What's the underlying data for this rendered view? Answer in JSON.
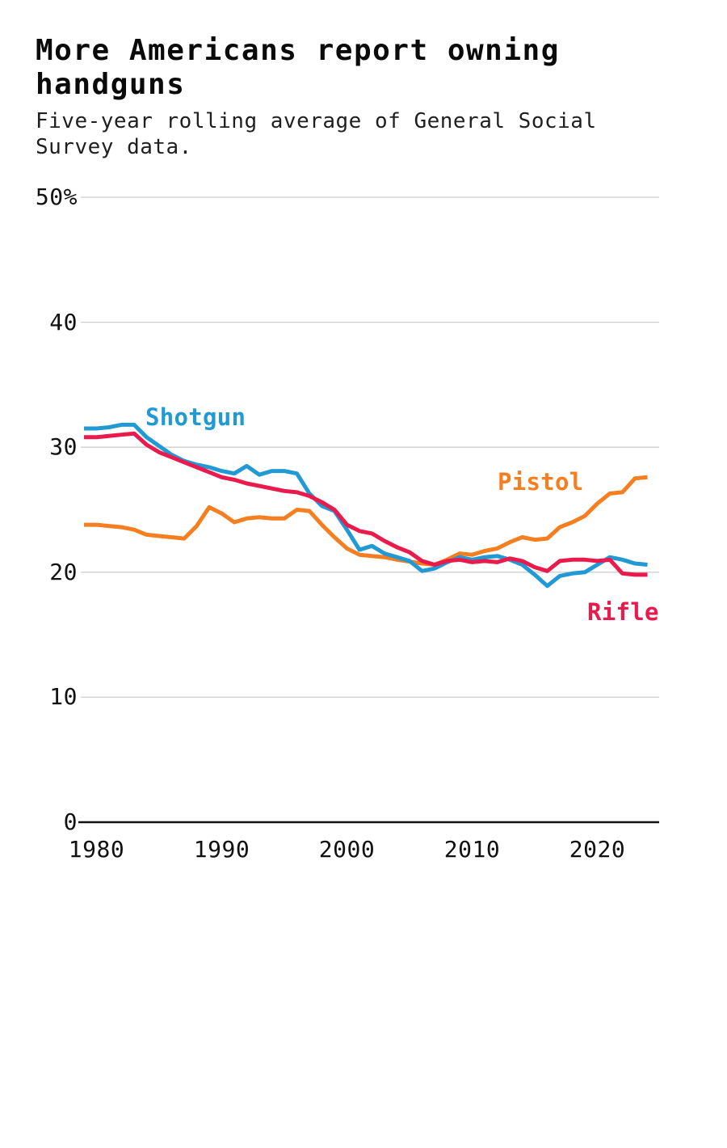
{
  "header": {
    "title": "More Americans report owning handguns",
    "subtitle": "Five-year rolling average of General Social Survey data."
  },
  "colors": {
    "background": "#ffffff",
    "grid": "#cfcfcf",
    "axis": "#111111",
    "text": "#0a0a0a",
    "pistol": "#f57f20",
    "shotgun": "#2199d4",
    "rifle": "#ea1a4c"
  },
  "chart_data": {
    "type": "line",
    "title": "More Americans report owning handguns",
    "subtitle": "Five-year rolling average of General Social Survey data.",
    "xlabel": "",
    "ylabel": "",
    "xlim": [
      1978.6,
      2025
    ],
    "ylim": [
      0,
      50
    ],
    "grid": "horizontal",
    "legend_position": "inline-labels",
    "x": [
      1979,
      1980,
      1981,
      1982,
      1983,
      1984,
      1985,
      1986,
      1987,
      1988,
      1989,
      1990,
      1991,
      1992,
      1993,
      1994,
      1995,
      1996,
      1997,
      1998,
      1999,
      2000,
      2001,
      2002,
      2003,
      2004,
      2005,
      2006,
      2007,
      2008,
      2009,
      2010,
      2011,
      2012,
      2013,
      2014,
      2015,
      2016,
      2017,
      2018,
      2019,
      2020,
      2021,
      2022,
      2023,
      2024
    ],
    "series": [
      {
        "name": "Pistol",
        "color": "#f57f20",
        "values": [
          23.8,
          23.8,
          23.7,
          23.6,
          23.4,
          23.0,
          22.9,
          22.8,
          22.7,
          23.7,
          25.2,
          24.7,
          24.0,
          24.3,
          24.4,
          24.3,
          24.3,
          25.0,
          24.9,
          23.8,
          22.8,
          21.9,
          21.4,
          21.3,
          21.2,
          21.0,
          20.85,
          20.7,
          20.6,
          21.0,
          21.5,
          21.4,
          21.7,
          21.9,
          22.4,
          22.8,
          22.6,
          22.7,
          23.6,
          24.0,
          24.5,
          25.5,
          26.3,
          26.4,
          27.5,
          27.6
        ]
      },
      {
        "name": "Shotgun",
        "color": "#2199d4",
        "values": [
          31.5,
          31.5,
          31.6,
          31.8,
          31.8,
          30.8,
          30.1,
          29.4,
          28.9,
          28.6,
          28.4,
          28.1,
          27.9,
          28.5,
          27.8,
          28.1,
          28.1,
          27.9,
          26.3,
          25.3,
          24.9,
          23.4,
          21.8,
          22.1,
          21.5,
          21.2,
          20.9,
          20.1,
          20.3,
          20.8,
          21.2,
          21.0,
          21.2,
          21.3,
          21.0,
          20.6,
          19.8,
          18.9,
          19.7,
          19.9,
          20.0,
          20.6,
          21.2,
          21.0,
          20.7,
          20.6
        ]
      },
      {
        "name": "Rifle",
        "color": "#ea1a4c",
        "values": [
          30.8,
          30.8,
          30.9,
          31.0,
          31.1,
          30.2,
          29.6,
          29.2,
          28.8,
          28.4,
          28.0,
          27.6,
          27.4,
          27.1,
          26.9,
          26.7,
          26.5,
          26.4,
          26.1,
          25.6,
          25.0,
          23.8,
          23.3,
          23.1,
          22.5,
          22.0,
          21.6,
          20.9,
          20.6,
          20.9,
          21.0,
          20.8,
          20.9,
          20.8,
          21.1,
          20.9,
          20.4,
          20.1,
          20.9,
          21.0,
          21.0,
          20.9,
          21.0,
          19.9,
          19.8,
          19.8
        ]
      }
    ],
    "yticks": [
      {
        "value": 50,
        "label": "50%"
      },
      {
        "value": 40,
        "label": "40"
      },
      {
        "value": 30,
        "label": "30"
      },
      {
        "value": 20,
        "label": "20"
      },
      {
        "value": 10,
        "label": "10"
      },
      {
        "value": 0,
        "label": "0"
      }
    ],
    "xticks": [
      {
        "year": 1980,
        "label": "1980"
      },
      {
        "year": 1990,
        "label": "1990"
      },
      {
        "year": 2000,
        "label": "2000"
      },
      {
        "year": 2010,
        "label": "2010"
      },
      {
        "year": 2020,
        "label": "2020"
      }
    ]
  }
}
